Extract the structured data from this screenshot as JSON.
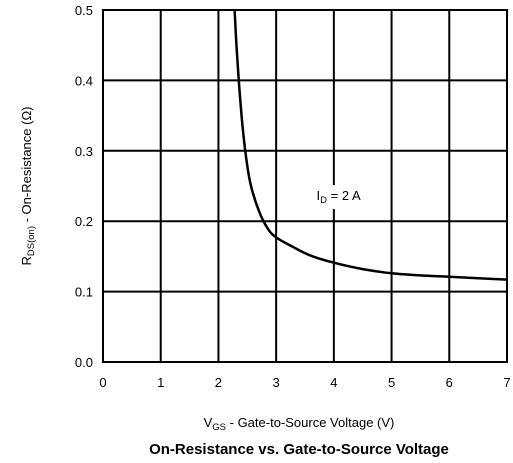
{
  "chart_data": {
    "type": "line",
    "title": "On-Resistance vs. Gate-to-Source Voltage",
    "xlabel": {
      "main": "V",
      "sub": "GS",
      "rest": " - Gate-to-Source Voltage (V)"
    },
    "ylabel": {
      "main": "R",
      "sub": "DS(on)",
      "rest": " - On-Resistance (Ω)"
    },
    "xlim": [
      0,
      7
    ],
    "ylim": [
      0,
      0.5
    ],
    "x_ticks": [
      0,
      1,
      2,
      3,
      4,
      5,
      6,
      7
    ],
    "y_ticks": [
      "0.0",
      "0.1",
      "0.2",
      "0.3",
      "0.4",
      "0.5"
    ],
    "grid": true,
    "annotation": {
      "main": "I",
      "sub": "D",
      "rest": " = 2 A",
      "x": 3.7,
      "y": 0.23
    },
    "series": [
      {
        "x": [
          2.28,
          2.32,
          2.38,
          2.45,
          2.55,
          2.7,
          2.85,
          3.0,
          3.3,
          3.6,
          4.0,
          4.5,
          5.0,
          5.5,
          6.0,
          6.5,
          7.0
        ],
        "y": [
          0.5,
          0.44,
          0.37,
          0.31,
          0.255,
          0.215,
          0.19,
          0.177,
          0.163,
          0.151,
          0.141,
          0.132,
          0.126,
          0.123,
          0.121,
          0.119,
          0.117
        ]
      }
    ]
  }
}
